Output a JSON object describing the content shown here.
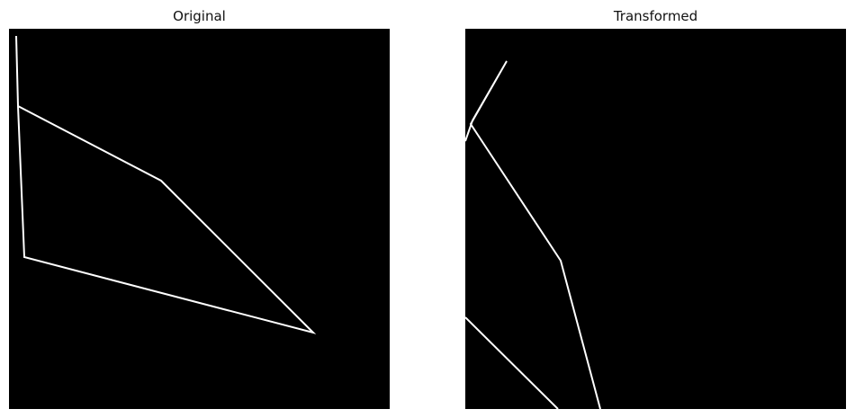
{
  "panels": {
    "original": {
      "title": "Original",
      "background": "#000000",
      "line_color": "#ffffff"
    },
    "transformed": {
      "title": "Transformed",
      "background": "#000000",
      "line_color": "#ffffff"
    }
  }
}
